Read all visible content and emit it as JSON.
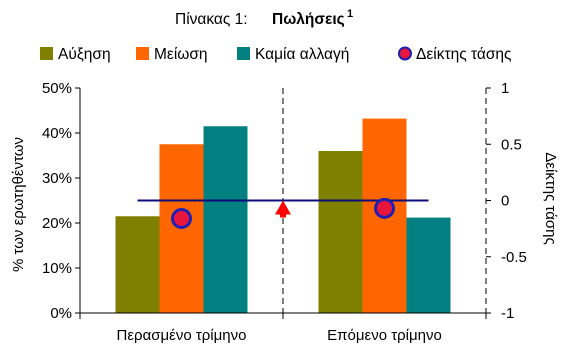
{
  "chart_data": {
    "type": "bar",
    "title_prefix": "Πίνακας 1:",
    "title_main": "Πωλήσεις",
    "title_sup": "1",
    "categories": [
      "Περασμένο τρίμηνο",
      "Επόμενο τρίμηνο"
    ],
    "series": [
      {
        "name": "Αύξηση",
        "color": "#808000",
        "values": [
          21.5,
          36
        ]
      },
      {
        "name": "Μείωση",
        "color": "#ff6600",
        "values": [
          37.5,
          43.2
        ]
      },
      {
        "name": "Καμία αλλαγή",
        "color": "#008080",
        "values": [
          41.5,
          21.2
        ]
      }
    ],
    "indicator": {
      "name": "Δείκτης τάσης",
      "values": [
        -0.16,
        -0.07
      ],
      "fill": "#e8163c",
      "stroke": "#1f1fb4"
    },
    "reference_line": {
      "value": 0,
      "color": "#0c0c7a"
    },
    "ylabel": "% των ερωτηθέντων",
    "ylim": [
      0,
      50
    ],
    "yticks": [
      0,
      10,
      20,
      30,
      40,
      50
    ],
    "ytick_labels": [
      "0%",
      "10%",
      "20%",
      "30%",
      "40%",
      "50%"
    ],
    "y2label": "Δείκτης τάσης",
    "y2lim": [
      -1,
      1
    ],
    "y2ticks": [
      -1,
      -0.5,
      0,
      0.5,
      1
    ],
    "y2tick_labels": [
      "-1",
      "-0.5",
      "0",
      "0.5",
      "1"
    ],
    "arrow_color": "#ff0000",
    "legend_position": "top"
  }
}
